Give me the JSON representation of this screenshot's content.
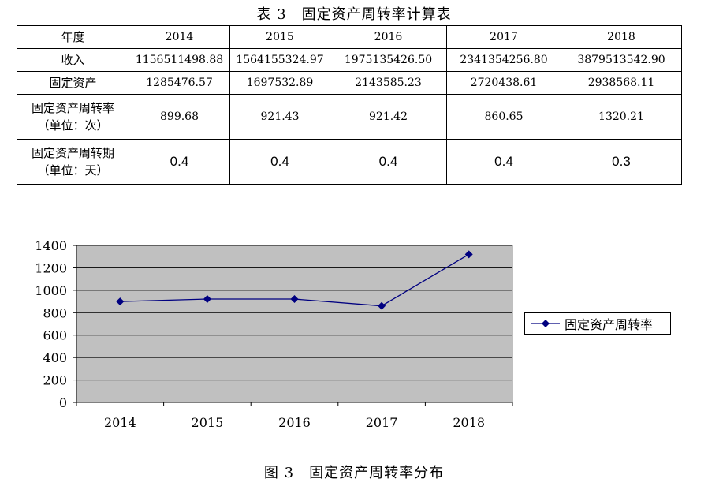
{
  "table": {
    "title": "表 3　固定资产周转率计算表",
    "header": [
      "年度",
      "2014",
      "2015",
      "2016",
      "2017",
      "2018"
    ],
    "rows": [
      {
        "label_line1": "收入",
        "label_line2": "",
        "cells": [
          "1156511498.88",
          "1564155324.97",
          "1975135426.50",
          "2341354256.80",
          "3879513542.90"
        ]
      },
      {
        "label_line1": "固定资产",
        "label_line2": "",
        "cells": [
          "1285476.57",
          "1697532.89",
          "2143585.23",
          "2720438.61",
          "2938568.11"
        ]
      },
      {
        "label_line1": "固定资产周转率",
        "label_line2": "（单位：次）",
        "cells": [
          "899.68",
          "921.43",
          "921.42",
          "860.65",
          "1320.21"
        ]
      },
      {
        "label_line1": "固定资产周转期",
        "label_line2": "（单位：天）",
        "cells": [
          "0.4",
          "0.4",
          "0.4",
          "0.4",
          "0.3"
        ]
      }
    ]
  },
  "chart_data": {
    "type": "line",
    "title": "",
    "categories": [
      "2014",
      "2015",
      "2016",
      "2017",
      "2018"
    ],
    "series": [
      {
        "name": "固定资产周转率",
        "values": [
          899.68,
          921.43,
          921.42,
          860.65,
          1320.21
        ]
      }
    ],
    "ylim": [
      0,
      1400
    ],
    "yticks": [
      "0",
      "200",
      "400",
      "600",
      "800",
      "1000",
      "1200",
      "1400"
    ],
    "grid": true,
    "legend": "right",
    "plot_bg": "#c0c0c0",
    "line_color": "#000080"
  },
  "caption": "图 3　固定资产周转率分布"
}
